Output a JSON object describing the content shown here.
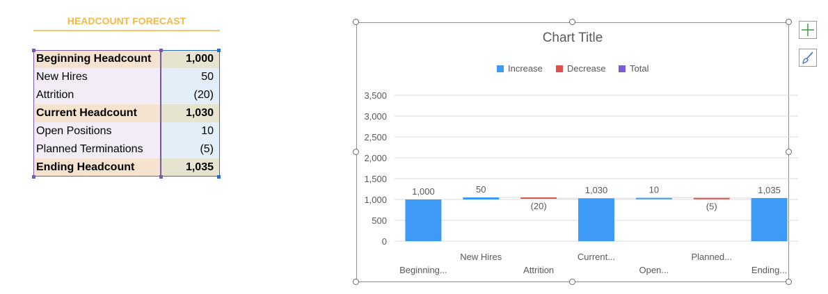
{
  "sheet": {
    "title": "HEADCOUNT FORECAST",
    "rows": [
      {
        "label": "Beginning Headcount",
        "value": "1,000",
        "bold": true
      },
      {
        "label": "New Hires",
        "value": "50",
        "bold": false
      },
      {
        "label": "Attrition",
        "value": "(20)",
        "bold": false
      },
      {
        "label": "Current Headcount",
        "value": "1,030",
        "bold": true
      },
      {
        "label": "Open Positions",
        "value": "10",
        "bold": false
      },
      {
        "label": "Planned Terminations",
        "value": "(5)",
        "bold": false
      },
      {
        "label": "Ending Headcount",
        "value": "1,035",
        "bold": true
      }
    ]
  },
  "chart_data": {
    "type": "bar",
    "subtype": "waterfall",
    "title": "Chart Title",
    "legend": {
      "position": "top",
      "items": [
        {
          "name": "Increase",
          "color": "#3d9bf6"
        },
        {
          "name": "Decrease",
          "color": "#e0504a"
        },
        {
          "name": "Total",
          "color": "#7d5cd6"
        }
      ]
    },
    "categories": [
      "Beginning...",
      "New Hires",
      "Attrition",
      "Current...",
      "Open...",
      "Planned...",
      "Ending..."
    ],
    "values": [
      1000,
      50,
      -20,
      1030,
      10,
      -5,
      1035
    ],
    "data_labels": [
      "1,000",
      "50",
      "(20)",
      "1,030",
      "10",
      "(5)",
      "1,035"
    ],
    "ylim": [
      0,
      3500
    ],
    "yticks": [
      0,
      500,
      1000,
      1500,
      2000,
      2500,
      3000,
      3500
    ],
    "ytick_labels": [
      "0",
      "500",
      "1,000",
      "1,500",
      "2,000",
      "2,500",
      "3,000",
      "3,500"
    ],
    "grid": true,
    "colors": {
      "bar": "#3d9bf6",
      "decrease_line": "#e0504a",
      "increase_line": "#3d9bf6",
      "connector": "#d9d9d9",
      "grid": "#d9d9d9",
      "text": "#595959"
    }
  },
  "side_buttons": {
    "add_icon": "plus-icon",
    "style_icon": "brush-icon"
  }
}
